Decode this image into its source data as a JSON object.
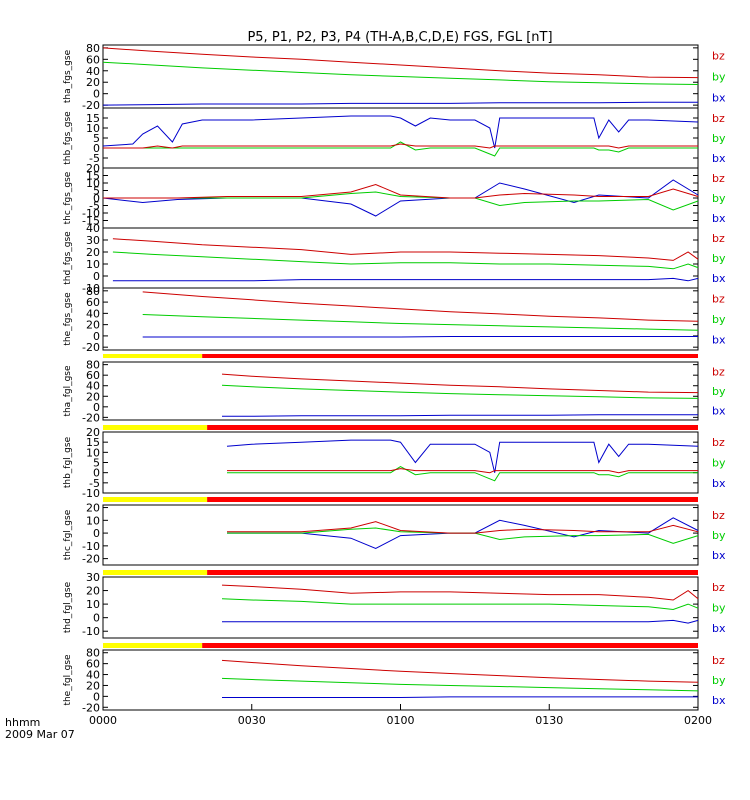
{
  "title": "P5, P1, P2, P3, P4 (TH-A,B,C,D,E) FGS, FGL [nT]",
  "time_axis": {
    "label_row1": "hhmm",
    "label_row2": "2009 Mar 07",
    "ticks": [
      "0000",
      "0030",
      "0100",
      "0130",
      "0200"
    ],
    "range_minutes": [
      0,
      120
    ]
  },
  "colors": {
    "bx": "#0000cc",
    "by": "#00cc00",
    "bz": "#cc0000",
    "mode_slow": "#ffff00",
    "mode_fast": "#ff0000"
  },
  "chart_data": [
    {
      "type": "line",
      "ylabel": "tha_fgs_gse",
      "ylim": [
        -25,
        85
      ],
      "yticks": [
        -20,
        0,
        20,
        40,
        60,
        80
      ],
      "legend": [
        "bz",
        "by",
        "bx"
      ],
      "x_minutes": [
        0,
        10,
        20,
        30,
        40,
        50,
        60,
        70,
        80,
        90,
        100,
        110,
        120
      ],
      "series": [
        {
          "name": "bz",
          "values": [
            80,
            74,
            69,
            64,
            60,
            55,
            50,
            45,
            40,
            36,
            33,
            29,
            28
          ]
        },
        {
          "name": "by",
          "values": [
            55,
            50,
            45,
            41,
            37,
            33,
            30,
            27,
            24,
            21,
            19,
            17,
            16
          ]
        },
        {
          "name": "bx",
          "values": [
            -20,
            -19,
            -18,
            -18,
            -18,
            -17,
            -17,
            -17,
            -16,
            -16,
            -16,
            -15,
            -15
          ]
        }
      ]
    },
    {
      "type": "line",
      "ylabel": "thb_fgs_gse",
      "ylim": [
        -10,
        20
      ],
      "yticks": [
        -5,
        0,
        5,
        10,
        15
      ],
      "legend": [
        "bz",
        "by",
        "bx"
      ],
      "x_minutes": [
        0,
        6,
        8,
        11,
        14,
        16,
        20,
        30,
        40,
        50,
        58,
        60,
        63,
        66,
        70,
        75,
        78,
        79,
        80,
        85,
        95,
        99,
        100,
        102,
        104,
        106,
        110,
        120
      ],
      "series": [
        {
          "name": "bx",
          "values": [
            1,
            2,
            7,
            11,
            3,
            12,
            14,
            14,
            15,
            16,
            16,
            15,
            11,
            15,
            14,
            14,
            10,
            0,
            15,
            15,
            15,
            15,
            5,
            14,
            8,
            14,
            14,
            13
          ]
        },
        {
          "name": "by",
          "values": [
            0,
            0,
            0,
            0,
            0,
            0,
            0,
            0,
            0,
            0,
            0,
            3,
            -1,
            0,
            0,
            0,
            -3,
            -4,
            0,
            0,
            0,
            0,
            -1,
            -1,
            -2,
            0,
            0,
            0
          ]
        },
        {
          "name": "bz",
          "values": [
            0,
            0,
            0,
            1,
            0,
            1,
            1,
            1,
            1,
            1,
            1,
            2,
            1,
            1,
            1,
            1,
            0,
            1,
            1,
            1,
            1,
            1,
            1,
            1,
            0,
            1,
            1,
            1
          ]
        }
      ]
    },
    {
      "type": "line",
      "ylabel": "thc_fgs_gse",
      "ylim": [
        -20,
        20
      ],
      "yticks": [
        -15,
        -10,
        -5,
        0,
        5,
        10,
        15,
        20
      ],
      "legend": [
        "bz",
        "by",
        "bx"
      ],
      "x_minutes": [
        0,
        8,
        15,
        25,
        40,
        50,
        55,
        60,
        70,
        75,
        80,
        85,
        95,
        100,
        110,
        115,
        120
      ],
      "series": [
        {
          "name": "bx",
          "values": [
            0,
            -3,
            -1,
            0,
            0,
            -4,
            -12,
            -2,
            0,
            0,
            10,
            6,
            -3,
            2,
            0,
            12,
            2
          ]
        },
        {
          "name": "by",
          "values": [
            0,
            0,
            0,
            0,
            0,
            3,
            4,
            1,
            0,
            0,
            -5,
            -3,
            -2,
            -2,
            -1,
            -8,
            -2
          ]
        },
        {
          "name": "bz",
          "values": [
            0,
            0,
            0,
            1,
            1,
            4,
            9,
            2,
            0,
            0,
            2,
            3,
            2,
            1,
            1,
            6,
            1
          ]
        }
      ]
    },
    {
      "type": "line",
      "ylabel": "thd_fgs_gse",
      "ylim": [
        -10,
        40
      ],
      "yticks": [
        -10,
        0,
        10,
        20,
        30,
        40
      ],
      "legend": [
        "bz",
        "by",
        "bx"
      ],
      "x_minutes": [
        2,
        10,
        20,
        30,
        40,
        50,
        60,
        70,
        80,
        90,
        100,
        110,
        115,
        118,
        120
      ],
      "series": [
        {
          "name": "bz",
          "values": [
            31,
            29,
            26,
            24,
            22,
            18,
            20,
            20,
            19,
            18,
            17,
            15,
            13,
            20,
            14
          ]
        },
        {
          "name": "by",
          "values": [
            20,
            18,
            16,
            14,
            12,
            10,
            11,
            11,
            10,
            10,
            9,
            8,
            6,
            10,
            7
          ]
        },
        {
          "name": "bx",
          "values": [
            -4,
            -4,
            -4,
            -4,
            -3,
            -3,
            -3,
            -3,
            -3,
            -3,
            -3,
            -3,
            -2,
            -4,
            -2
          ]
        }
      ]
    },
    {
      "type": "line",
      "ylabel": "the_fgs_gse",
      "ylim": [
        -25,
        85
      ],
      "yticks": [
        -20,
        0,
        20,
        40,
        60,
        80
      ],
      "legend": [
        "bz",
        "by",
        "bx"
      ],
      "x_minutes": [
        8,
        20,
        30,
        40,
        50,
        60,
        70,
        80,
        90,
        100,
        110,
        120
      ],
      "series": [
        {
          "name": "bz",
          "values": [
            78,
            70,
            64,
            58,
            53,
            48,
            43,
            39,
            35,
            32,
            28,
            26
          ]
        },
        {
          "name": "by",
          "values": [
            38,
            34,
            31,
            28,
            25,
            22,
            20,
            18,
            16,
            14,
            12,
            10
          ]
        },
        {
          "name": "bx",
          "values": [
            -2,
            -2,
            -2,
            -2,
            -2,
            -2,
            -1,
            -1,
            -1,
            -1,
            -1,
            -1
          ]
        }
      ]
    },
    {
      "type": "line",
      "ylabel": "tha_fgl_gse",
      "ylim": [
        -25,
        85
      ],
      "yticks": [
        -20,
        0,
        20,
        40,
        60,
        80
      ],
      "legend": [
        "bz",
        "by",
        "bx"
      ],
      "x_minutes": [
        24,
        30,
        40,
        50,
        60,
        70,
        80,
        90,
        100,
        110,
        120
      ],
      "series": [
        {
          "name": "bz",
          "values": [
            62,
            58,
            53,
            49,
            45,
            41,
            38,
            34,
            31,
            28,
            27
          ]
        },
        {
          "name": "by",
          "values": [
            41,
            38,
            34,
            31,
            28,
            25,
            23,
            21,
            19,
            17,
            16
          ]
        },
        {
          "name": "bx",
          "values": [
            -18,
            -18,
            -17,
            -17,
            -17,
            -16,
            -16,
            -16,
            -15,
            -15,
            -15
          ]
        }
      ]
    },
    {
      "type": "line",
      "ylabel": "thb_fgl_gse",
      "ylim": [
        -10,
        20
      ],
      "yticks": [
        -10,
        -5,
        0,
        5,
        10,
        15,
        20
      ],
      "legend": [
        "bz",
        "by",
        "bx"
      ],
      "x_minutes": [
        25,
        30,
        40,
        50,
        58,
        60,
        63,
        66,
        70,
        75,
        78,
        79,
        80,
        85,
        95,
        99,
        100,
        102,
        104,
        106,
        110,
        120
      ],
      "series": [
        {
          "name": "bx",
          "values": [
            13,
            14,
            15,
            16,
            16,
            15,
            5,
            14,
            14,
            14,
            10,
            0,
            15,
            15,
            15,
            15,
            5,
            14,
            8,
            14,
            14,
            13
          ]
        },
        {
          "name": "by",
          "values": [
            0,
            0,
            0,
            0,
            0,
            3,
            -1,
            0,
            0,
            0,
            -3,
            -4,
            0,
            0,
            0,
            0,
            -1,
            -1,
            -2,
            0,
            0,
            0
          ]
        },
        {
          "name": "bz",
          "values": [
            1,
            1,
            1,
            1,
            1,
            2,
            1,
            1,
            1,
            1,
            0,
            1,
            1,
            1,
            1,
            1,
            1,
            1,
            0,
            1,
            1,
            1
          ]
        }
      ]
    },
    {
      "type": "line",
      "ylabel": "thc_fgl_gse",
      "ylim": [
        -25,
        22
      ],
      "yticks": [
        -20,
        -10,
        0,
        10,
        20
      ],
      "legend": [
        "bz",
        "by",
        "bx"
      ],
      "x_minutes": [
        25,
        40,
        50,
        55,
        60,
        70,
        75,
        80,
        85,
        95,
        100,
        110,
        115,
        120
      ],
      "series": [
        {
          "name": "bx",
          "values": [
            0,
            0,
            -4,
            -12,
            -2,
            0,
            0,
            10,
            6,
            -3,
            2,
            0,
            12,
            2
          ]
        },
        {
          "name": "by",
          "values": [
            0,
            0,
            3,
            4,
            1,
            0,
            0,
            -5,
            -3,
            -2,
            -2,
            -1,
            -8,
            -2
          ]
        },
        {
          "name": "bz",
          "values": [
            1,
            1,
            4,
            9,
            2,
            0,
            0,
            2,
            3,
            2,
            1,
            1,
            6,
            1
          ]
        }
      ]
    },
    {
      "type": "line",
      "ylabel": "thd_fgl_gse",
      "ylim": [
        -15,
        30
      ],
      "yticks": [
        -10,
        0,
        10,
        20,
        30
      ],
      "legend": [
        "bz",
        "by",
        "bx"
      ],
      "x_minutes": [
        24,
        30,
        40,
        50,
        60,
        70,
        80,
        90,
        100,
        110,
        115,
        118,
        120
      ],
      "series": [
        {
          "name": "bz",
          "values": [
            24,
            23,
            21,
            18,
            19,
            19,
            18,
            17,
            17,
            15,
            13,
            20,
            14
          ]
        },
        {
          "name": "by",
          "values": [
            14,
            13,
            12,
            10,
            10,
            10,
            10,
            10,
            9,
            8,
            6,
            10,
            7
          ]
        },
        {
          "name": "bx",
          "values": [
            -3,
            -3,
            -3,
            -3,
            -3,
            -3,
            -3,
            -3,
            -3,
            -3,
            -2,
            -4,
            -2
          ]
        }
      ]
    },
    {
      "type": "line",
      "ylabel": "the_fgl_gse",
      "ylim": [
        -25,
        85
      ],
      "yticks": [
        -20,
        0,
        20,
        40,
        60,
        80
      ],
      "legend": [
        "bz",
        "by",
        "bx"
      ],
      "x_minutes": [
        24,
        30,
        40,
        50,
        60,
        70,
        80,
        90,
        100,
        110,
        120
      ],
      "series": [
        {
          "name": "bz",
          "values": [
            66,
            62,
            56,
            51,
            46,
            42,
            38,
            34,
            31,
            28,
            26
          ]
        },
        {
          "name": "by",
          "values": [
            33,
            31,
            28,
            25,
            22,
            20,
            18,
            16,
            14,
            12,
            10
          ]
        },
        {
          "name": "bx",
          "values": [
            -2,
            -2,
            -2,
            -2,
            -2,
            -1,
            -1,
            -1,
            -1,
            -1,
            -1
          ]
        }
      ]
    }
  ],
  "mode_bars": [
    {
      "segments": [
        {
          "from_minutes": 0,
          "to_minutes": 20,
          "mode": "slow"
        },
        {
          "from_minutes": 20,
          "to_minutes": 120,
          "mode": "fast"
        }
      ]
    },
    {
      "segments": [
        {
          "from_minutes": 0,
          "to_minutes": 21,
          "mode": "slow"
        },
        {
          "from_minutes": 21,
          "to_minutes": 120,
          "mode": "fast"
        }
      ]
    },
    {
      "segments": [
        {
          "from_minutes": 0,
          "to_minutes": 21,
          "mode": "slow"
        },
        {
          "from_minutes": 21,
          "to_minutes": 120,
          "mode": "fast"
        }
      ]
    },
    {
      "segments": [
        {
          "from_minutes": 0,
          "to_minutes": 21,
          "mode": "slow"
        },
        {
          "from_minutes": 21,
          "to_minutes": 120,
          "mode": "fast"
        }
      ]
    },
    {
      "segments": [
        {
          "from_minutes": 0,
          "to_minutes": 20,
          "mode": "slow"
        },
        {
          "from_minutes": 20,
          "to_minutes": 120,
          "mode": "fast"
        }
      ]
    }
  ]
}
